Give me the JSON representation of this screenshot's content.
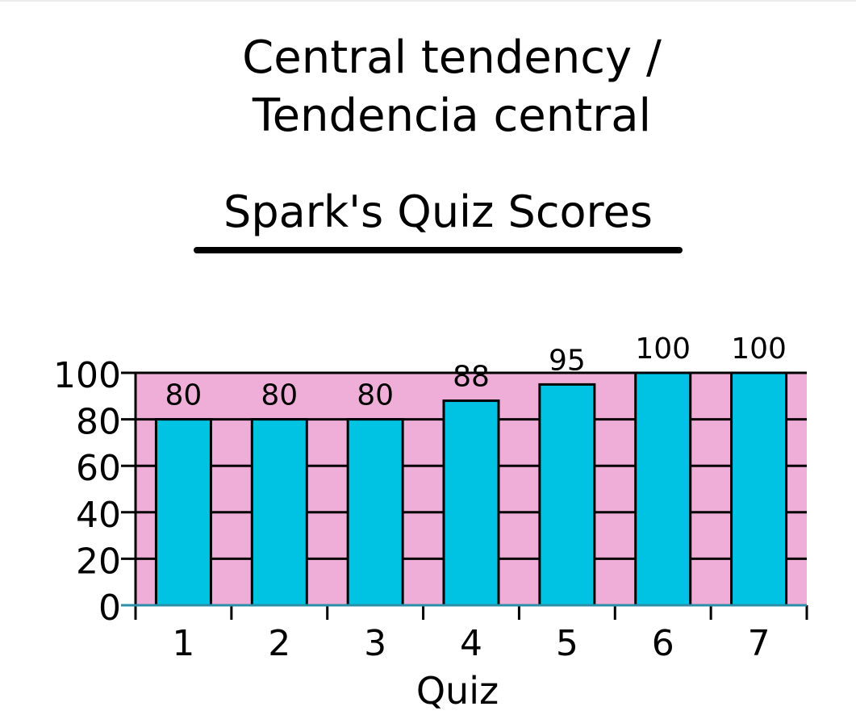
{
  "heading": {
    "line1": "Central tendency /",
    "line2": "Tendencia central"
  },
  "chart_data": {
    "type": "bar",
    "title": "Spark's Quiz Scores",
    "xlabel": "Quiz",
    "ylabel": "",
    "categories": [
      "1",
      "2",
      "3",
      "4",
      "5",
      "6",
      "7"
    ],
    "values": [
      80,
      80,
      80,
      88,
      95,
      100,
      100
    ],
    "data_labels": [
      "80",
      "80",
      "80",
      "88",
      "95",
      "100",
      "100"
    ],
    "yticks": [
      "0",
      "20",
      "40",
      "60",
      "80",
      "100"
    ],
    "ylim": [
      0,
      100
    ],
    "grid": true,
    "colors": {
      "plot_background": "#efaed8",
      "bar_fill": "#00c3e3",
      "bar_stroke": "#000000",
      "grid": "#000000",
      "baseline": "#2b8fa8"
    }
  }
}
